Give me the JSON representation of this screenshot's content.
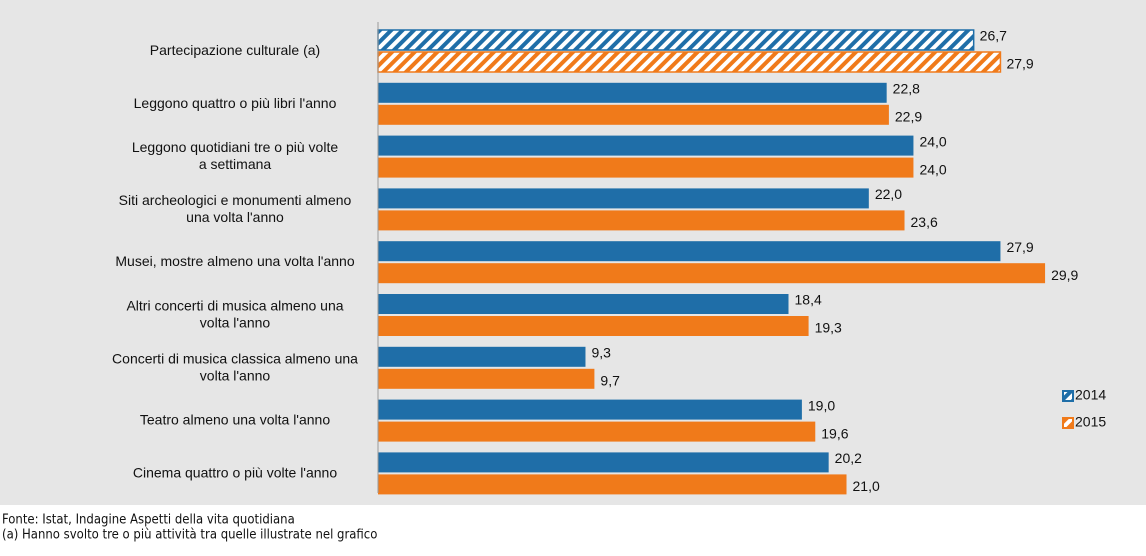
{
  "chart_data": {
    "type": "bar",
    "orientation": "horizontal",
    "categories": [
      [
        "Partecipazione culturale (a)"
      ],
      [
        "Leggono quattro o più libri l'anno"
      ],
      [
        "Leggono quotidiani  tre o più volte",
        "a settimana"
      ],
      [
        "Siti archeologici e monumenti almeno",
        "una volta l'anno"
      ],
      [
        "Musei, mostre almeno una volta l'anno"
      ],
      [
        "Altri concerti di musica almeno una",
        "volta l'anno"
      ],
      [
        "Concerti di musica classica almeno una",
        "volta l'anno"
      ],
      [
        "Teatro almeno una volta l'anno"
      ],
      [
        "Cinema  quattro o più volte l'anno"
      ]
    ],
    "styles": [
      "hatched",
      "solid",
      "solid",
      "solid",
      "solid",
      "solid",
      "solid",
      "solid",
      "solid"
    ],
    "series": [
      {
        "name": "2014",
        "color": "#1f6ea8",
        "values": [
          26.7,
          22.8,
          24.0,
          22.0,
          27.9,
          18.4,
          9.3,
          19.0,
          20.2
        ],
        "value_labels": [
          "26,7",
          "22,8",
          "24,0",
          "22,0",
          "27,9",
          "18,4",
          "9,3",
          "19,0",
          "20,2"
        ]
      },
      {
        "name": "2015",
        "color": "#f07a1a",
        "values": [
          27.9,
          22.9,
          24.0,
          23.6,
          29.9,
          19.3,
          9.7,
          19.6,
          21.0
        ],
        "value_labels": [
          "27,9",
          "22,9",
          "24,0",
          "23,6",
          "29,9",
          "19,3",
          "9,7",
          "19,6",
          "21,0"
        ]
      }
    ],
    "legend": "right",
    "notes": [
      "Fonte: Istat, Indagine Aspetti della vita quotidiana",
      "(a) Hanno svolto tre o più attività tra quelle illustrate nel grafico"
    ]
  }
}
